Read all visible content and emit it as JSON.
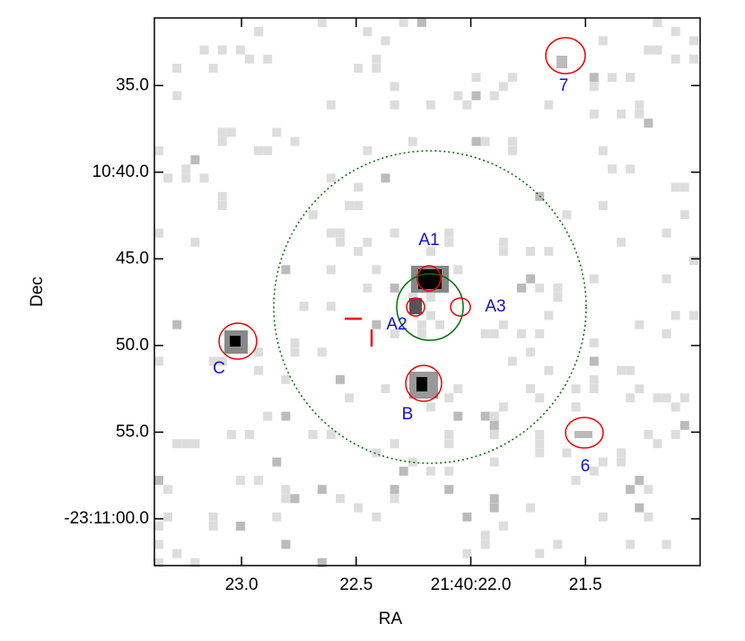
{
  "chart_data": {
    "type": "image",
    "xlabel": "RA",
    "ylabel": "Dec",
    "xlim": [
      23.38,
      21.0
    ],
    "xticks": [
      {
        "value": 23.0,
        "label": "23.0"
      },
      {
        "value": 22.5,
        "label": "22.5"
      },
      {
        "value": 22.0,
        "label": "21:40:22.0"
      },
      {
        "value": 21.5,
        "label": "21.5"
      }
    ],
    "ylim": [
      62.7,
      31.1
    ],
    "yticks": [
      {
        "value": 35,
        "label": "35.0"
      },
      {
        "value": 40,
        "label": "10:40.0"
      },
      {
        "value": 45,
        "label": "45.0"
      },
      {
        "value": 50,
        "label": "50.0"
      },
      {
        "value": 55,
        "label": "55.0"
      },
      {
        "value": 60,
        "label": "-23:11:00.0"
      }
    ],
    "annotations": [
      "A1",
      "A2",
      "A3",
      "B",
      "C",
      "6",
      "7"
    ]
  }
}
